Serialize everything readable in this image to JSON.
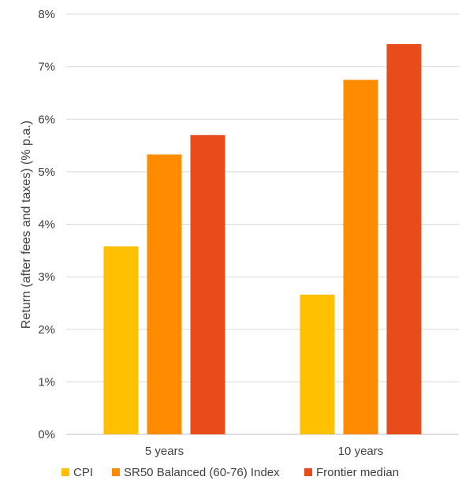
{
  "chart_data": {
    "type": "bar",
    "categories": [
      "5 years",
      "10 years"
    ],
    "series": [
      {
        "name": "CPI",
        "values": [
          3.58,
          2.66
        ],
        "color": "#FFC000"
      },
      {
        "name": "SR50 Balanced (60-76) Index",
        "values": [
          5.33,
          6.75
        ],
        "color": "#FF8C00"
      },
      {
        "name": "Frontier median",
        "values": [
          5.7,
          7.43
        ],
        "color": "#E84C1B"
      }
    ],
    "title": "",
    "xlabel": "",
    "ylabel": "Return (after fees and taxes) (% p.a.)",
    "ylim": [
      0,
      8
    ],
    "yticks": [
      "0%",
      "1%",
      "2%",
      "3%",
      "4%",
      "5%",
      "6%",
      "7%",
      "8%"
    ],
    "grid": true,
    "legend_position": "bottom"
  }
}
